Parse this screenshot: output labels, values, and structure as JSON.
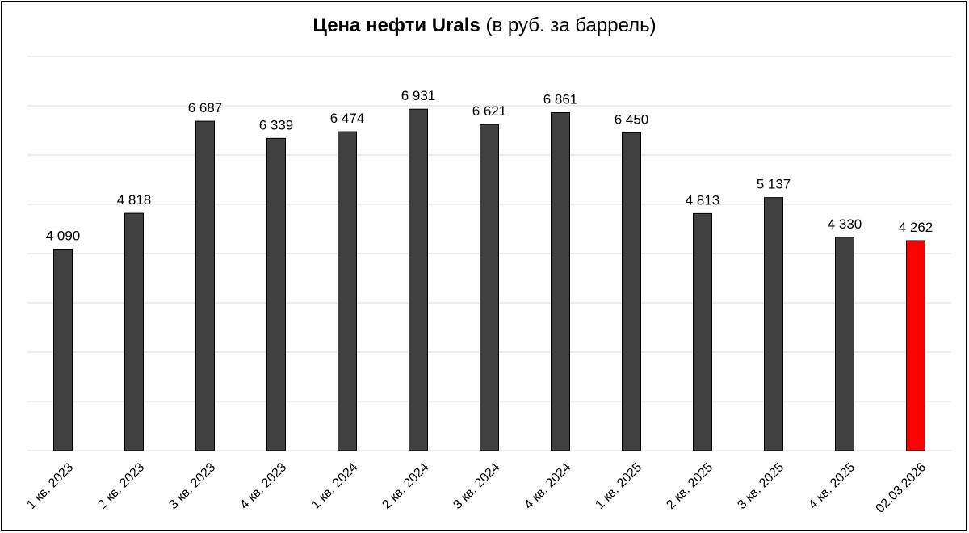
{
  "chart_data": {
    "type": "bar",
    "title_bold": "Цена нефти Urals",
    "title_rest": "(в руб. за баррель)",
    "categories": [
      "1 кв. 2023",
      "2 кв. 2023",
      "3 кв. 2023",
      "4 кв. 2023",
      "1 кв. 2024",
      "2 кв. 2024",
      "3 кв. 2024",
      "4 кв. 2024",
      "1 кв. 2025",
      "2 кв. 2025",
      "3 кв. 2025",
      "4 кв. 2025",
      "02.03.2026"
    ],
    "values": [
      4090,
      4818,
      6687,
      6339,
      6474,
      6931,
      6621,
      6861,
      6450,
      4813,
      5137,
      4330,
      4262
    ],
    "value_labels": [
      "4 090",
      "4 818",
      "6 687",
      "6 339",
      "6 474",
      "6 931",
      "6 621",
      "6 861",
      "6 450",
      "4 813",
      "5 137",
      "4 330",
      "4 262"
    ],
    "ylim": [
      0,
      8000
    ],
    "grid": true,
    "legend": "none",
    "colors": {
      "bar": "#404040",
      "highlight": "#ff0000",
      "grid": "#d9d9d9"
    },
    "highlight_index": 12
  }
}
